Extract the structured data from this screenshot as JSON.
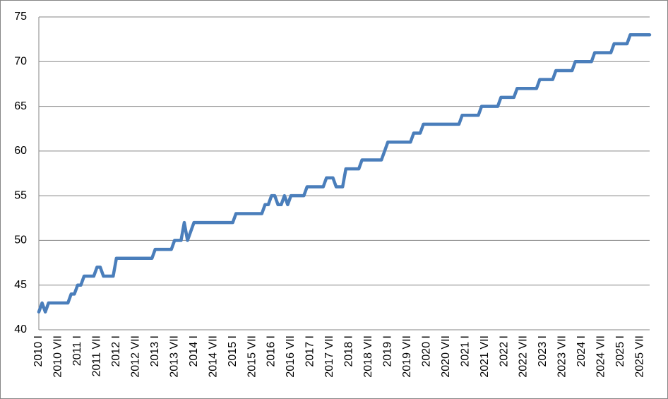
{
  "chart_data": {
    "type": "line",
    "categories": [
      "2010 I",
      null,
      null,
      null,
      null,
      null,
      "2010 VII",
      null,
      null,
      null,
      null,
      null,
      "2011 I",
      null,
      null,
      null,
      null,
      null,
      "2011 VII",
      null,
      null,
      null,
      null,
      null,
      "2012 I",
      null,
      null,
      null,
      null,
      null,
      "2012 VII",
      null,
      null,
      null,
      null,
      null,
      "2013 I",
      null,
      null,
      null,
      null,
      null,
      "2013 VII",
      null,
      null,
      null,
      null,
      null,
      "2014 I",
      null,
      null,
      null,
      null,
      null,
      "2014 VII",
      null,
      null,
      null,
      null,
      null,
      "2015 I",
      null,
      null,
      null,
      null,
      null,
      "2015 VII",
      null,
      null,
      null,
      null,
      null,
      "2016 I",
      null,
      null,
      null,
      null,
      null,
      "2016 VII",
      null,
      null,
      null,
      null,
      null,
      "2017 I",
      null,
      null,
      null,
      null,
      null,
      "2017 VII",
      null,
      null,
      null,
      null,
      null,
      "2018 I",
      null,
      null,
      null,
      null,
      null,
      "2018 VII",
      null,
      null,
      null,
      null,
      null,
      "2019 I",
      null,
      null,
      null,
      null,
      null,
      "2019 VII",
      null,
      null,
      null,
      null,
      null,
      "2020 I",
      null,
      null,
      null,
      null,
      null,
      "2020 VII",
      null,
      null,
      null,
      null,
      null,
      "2021 I",
      null,
      null,
      null,
      null,
      null,
      "2021 VII",
      null,
      null,
      null,
      null,
      null,
      "2022 I",
      null,
      null,
      null,
      null,
      null,
      "2022 VII",
      null,
      null,
      null,
      null,
      null,
      "2023 I",
      null,
      null,
      null,
      null,
      null,
      "2023 VII",
      null,
      null,
      null,
      null,
      null,
      "2024 I",
      null,
      null,
      null,
      null,
      null,
      "2024 VII",
      null,
      null,
      null,
      null,
      null,
      "2025 I",
      null,
      null,
      null,
      null,
      null,
      "2025 VII",
      null,
      null,
      null
    ],
    "values": [
      42,
      43,
      42,
      43,
      43,
      43,
      43,
      43,
      43,
      43,
      44,
      44,
      45,
      45,
      46,
      46,
      46,
      46,
      47,
      47,
      46,
      46,
      46,
      46,
      48,
      48,
      48,
      48,
      48,
      48,
      48,
      48,
      48,
      48,
      48,
      48,
      49,
      49,
      49,
      49,
      49,
      49,
      50,
      50,
      50,
      52,
      50,
      51,
      52,
      52,
      52,
      52,
      52,
      52,
      52,
      52,
      52,
      52,
      52,
      52,
      52,
      53,
      53,
      53,
      53,
      53,
      53,
      53,
      53,
      53,
      54,
      54,
      55,
      55,
      54,
      54,
      55,
      54,
      55,
      55,
      55,
      55,
      55,
      56,
      56,
      56,
      56,
      56,
      56,
      57,
      57,
      57,
      56,
      56,
      56,
      58,
      58,
      58,
      58,
      58,
      59,
      59,
      59,
      59,
      59,
      59,
      59,
      60,
      61,
      61,
      61,
      61,
      61,
      61,
      61,
      61,
      62,
      62,
      62,
      63,
      63,
      63,
      63,
      63,
      63,
      63,
      63,
      63,
      63,
      63,
      63,
      64,
      64,
      64,
      64,
      64,
      64,
      65,
      65,
      65,
      65,
      65,
      65,
      66,
      66,
      66,
      66,
      66,
      67,
      67,
      67,
      67,
      67,
      67,
      67,
      68,
      68,
      68,
      68,
      68,
      69,
      69,
      69,
      69,
      69,
      69,
      70,
      70,
      70,
      70,
      70,
      70,
      71,
      71,
      71,
      71,
      71,
      71,
      72,
      72,
      72,
      72,
      72,
      73,
      73,
      73,
      73,
      73,
      73,
      73
    ],
    "color": "#4a7ebb",
    "ylim": [
      40,
      75
    ],
    "yticks": [
      40,
      45,
      50,
      55,
      60,
      65,
      70,
      75
    ],
    "grid": true
  }
}
